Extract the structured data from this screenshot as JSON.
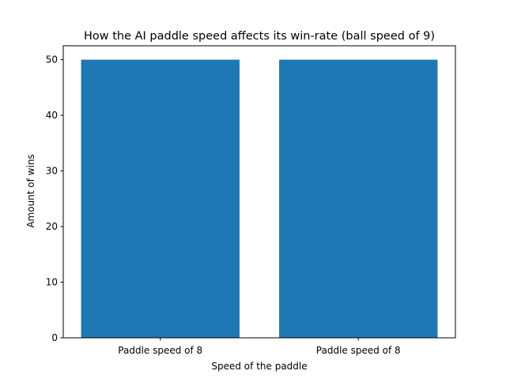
{
  "chart_data": {
    "type": "bar",
    "title": "How the AI paddle speed affects its win-rate (ball speed of 9)",
    "xlabel": "Speed of the paddle",
    "ylabel": "Amount of wins",
    "categories": [
      "Paddle speed of 8",
      "Paddle speed of 8"
    ],
    "values": [
      50,
      50
    ],
    "ylim": [
      0,
      52.5
    ],
    "yticks": [
      0,
      10,
      20,
      30,
      40,
      50
    ],
    "grid": false,
    "bar_color": "#1f77b4"
  }
}
